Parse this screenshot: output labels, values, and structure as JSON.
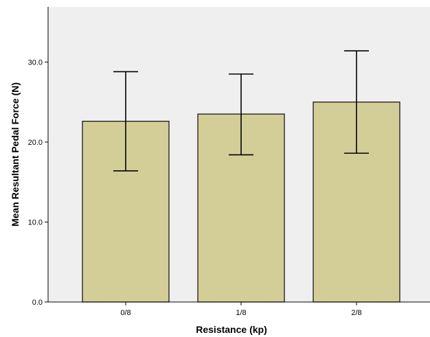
{
  "chart_data": {
    "type": "bar",
    "title": "",
    "xlabel": "Resistance (kp)",
    "ylabel": "Mean Resultant Pedal Force (N)",
    "categories": [
      "0/8",
      "1/8",
      "2/8"
    ],
    "values": [
      22.6,
      23.5,
      25.0
    ],
    "error_upper": [
      28.8,
      28.5,
      31.4
    ],
    "error_lower": [
      16.4,
      18.4,
      18.6
    ],
    "ylim": [
      0,
      36.9
    ],
    "yticks": [
      0,
      10,
      20,
      30
    ],
    "ytick_labels": [
      "0.0",
      "10.0",
      "20.0",
      "30.0"
    ],
    "grid": false,
    "colors": {
      "plot_background": "#efefef",
      "bar_fill": "#d3ce97",
      "bar_stroke": "#1a1a1a",
      "error_bar": "#000000"
    }
  }
}
